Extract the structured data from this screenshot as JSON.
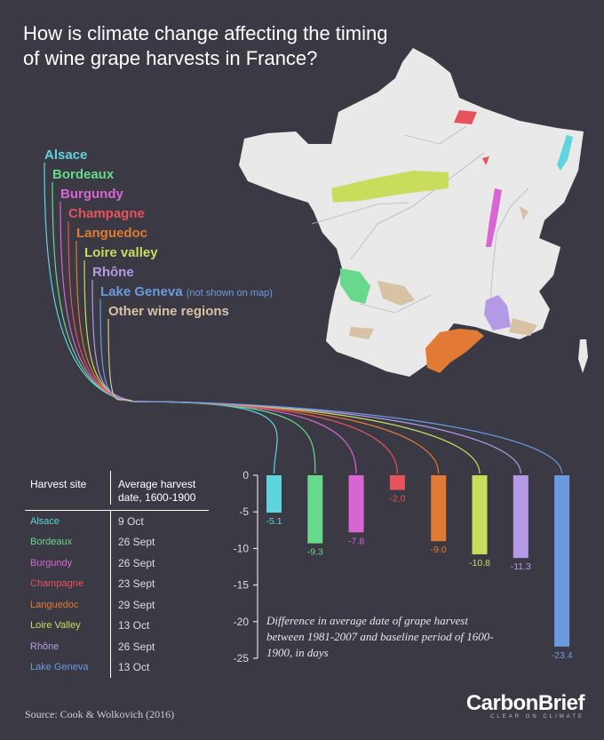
{
  "title": "How is climate change affecting the timing of wine grape harvests in France?",
  "colors": {
    "background": "#3b3a44",
    "map_land": "#e9e9e9",
    "Alsace": "#5ed4dc",
    "Bordeaux": "#66d98a",
    "Burgundy": "#d765d4",
    "Champagne": "#e8525c",
    "Languedoc": "#e07a34",
    "Loire valley": "#c9dc5c",
    "Rhône": "#b49ae6",
    "Lake Geneva": "#6a9be0",
    "Other wine regions": "#d8c2a6"
  },
  "legend": [
    {
      "label": "Alsace",
      "color": "#5ed4dc"
    },
    {
      "label": "Bordeaux",
      "color": "#66d98a"
    },
    {
      "label": "Burgundy",
      "color": "#d765d4"
    },
    {
      "label": "Champagne",
      "color": "#e8525c"
    },
    {
      "label": "Languedoc",
      "color": "#e07a34"
    },
    {
      "label": "Loire valley",
      "color": "#c9dc5c"
    },
    {
      "label": "Rhône",
      "color": "#b49ae6"
    },
    {
      "label": "Lake Geneva",
      "color": "#6a9be0",
      "note": "(not shown on map)"
    },
    {
      "label": "Other wine regions",
      "color": "#d8c2a6"
    }
  ],
  "table": {
    "col1_header": "Harvest site",
    "col2_header_line1": "Average harvest",
    "col2_header_line2": "date, 1600-1900",
    "rows": [
      {
        "site": "Alsace",
        "date": "9 Oct",
        "color": "#5ed4dc"
      },
      {
        "site": "Bordeaux",
        "date": "26 Sept",
        "color": "#66d98a"
      },
      {
        "site": "Burgundy",
        "date": "26 Sept",
        "color": "#d765d4"
      },
      {
        "site": "Champagne",
        "date": "23 Sept",
        "color": "#e8525c"
      },
      {
        "site": "Languedoc",
        "date": "29 Sept",
        "color": "#e07a34"
      },
      {
        "site": "Loire Valley",
        "date": "13 Oct",
        "color": "#c9dc5c"
      },
      {
        "site": "Rhône",
        "date": "26 Sept",
        "color": "#b49ae6"
      },
      {
        "site": "Lake Geneva",
        "date": "13 Oct",
        "color": "#6a9be0"
      }
    ]
  },
  "chart_data": {
    "type": "bar",
    "categories": [
      "Alsace",
      "Bordeaux",
      "Burgundy",
      "Champagne",
      "Languedoc",
      "Loire Valley",
      "Rhône",
      "Lake Geneva"
    ],
    "values": [
      -5.1,
      -9.3,
      -7.8,
      -2.0,
      -9.0,
      -10.8,
      -11.3,
      -23.4
    ],
    "value_labels": [
      "-5.1",
      "-9.3",
      "-7.8",
      "-2.0",
      "-9.0",
      "-10.8",
      "-11.3",
      "-23.4"
    ],
    "colors": [
      "#5ed4dc",
      "#66d98a",
      "#d765d4",
      "#e8525c",
      "#e07a34",
      "#c9dc5c",
      "#b49ae6",
      "#6a9be0"
    ],
    "ylim": [
      -25,
      0
    ],
    "yticks": [
      0,
      -5,
      -10,
      -15,
      -20,
      -25
    ],
    "ytick_labels": [
      "0",
      "-5",
      "-10",
      "-15",
      "-20",
      "-25"
    ],
    "note": "Difference in average date of grape harvest between 1981-2007 and baseline period of 1600-1900, in days"
  },
  "source": "Source: Cook & Wolkovich (2016)",
  "brand": {
    "name": "CarbonBrief",
    "tagline": "CLEAR ON CLIMATE"
  }
}
